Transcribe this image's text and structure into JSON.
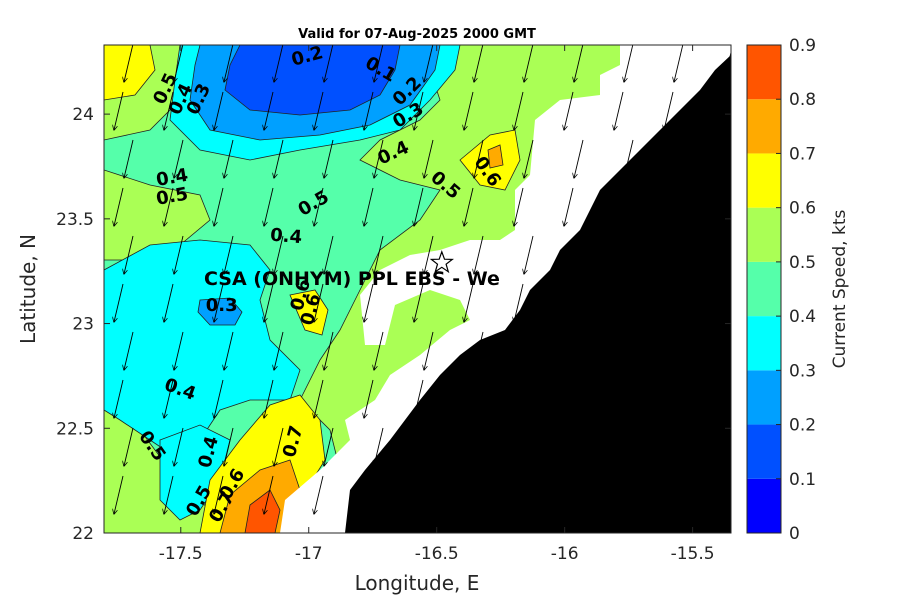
{
  "title": "Valid for 07-Aug-2025 2000 GMT",
  "x_axis": {
    "label": "Longitude, E",
    "ticks": [
      {
        "value": -17.5,
        "label": "-17.5"
      },
      {
        "value": -17.0,
        "label": "-17"
      },
      {
        "value": -16.5,
        "label": "-16.5"
      },
      {
        "value": -16.0,
        "label": "-16"
      },
      {
        "value": -15.5,
        "label": "-15.5"
      }
    ],
    "range": [
      -17.8,
      -15.35
    ]
  },
  "y_axis": {
    "label": "Latitude, N",
    "ticks": [
      {
        "value": 22.0,
        "label": "22"
      },
      {
        "value": 22.5,
        "label": "22.5"
      },
      {
        "value": 23.0,
        "label": "23"
      },
      {
        "value": 23.5,
        "label": "23.5"
      },
      {
        "value": 24.0,
        "label": "24"
      }
    ],
    "range": [
      22.0,
      24.33
    ]
  },
  "colorbar": {
    "label": "Current Speed, kts",
    "ticks": [
      "0",
      "0.1",
      "0.2",
      "0.3",
      "0.4",
      "0.5",
      "0.6",
      "0.7",
      "0.8",
      "0.9"
    ],
    "levels": [
      {
        "min": 0.0,
        "max": 0.1,
        "color": "#0000ff"
      },
      {
        "min": 0.1,
        "max": 0.2,
        "color": "#0050ff"
      },
      {
        "min": 0.2,
        "max": 0.3,
        "color": "#00a0ff"
      },
      {
        "min": 0.3,
        "max": 0.4,
        "color": "#00ffff"
      },
      {
        "min": 0.4,
        "max": 0.5,
        "color": "#55ffaa"
      },
      {
        "min": 0.5,
        "max": 0.6,
        "color": "#aaff55"
      },
      {
        "min": 0.6,
        "max": 0.7,
        "color": "#ffff00"
      },
      {
        "min": 0.7,
        "max": 0.8,
        "color": "#ffaa00"
      },
      {
        "min": 0.8,
        "max": 0.9,
        "color": "#ff5500"
      }
    ]
  },
  "station": {
    "label": "CSA (ONHYM) PPL EBS - We",
    "lon": -16.48,
    "lat": 23.29
  },
  "contour_labels": [
    {
      "text": "0.2",
      "lon": -17.0,
      "lat": 24.25,
      "rot": -15
    },
    {
      "text": "0.1",
      "lon": -16.73,
      "lat": 24.19,
      "rot": 30
    },
    {
      "text": "0.2",
      "lon": -16.6,
      "lat": 24.09,
      "rot": -45
    },
    {
      "text": "0.3",
      "lon": -16.6,
      "lat": 23.97,
      "rot": -30
    },
    {
      "text": "0.5",
      "lon": -17.54,
      "lat": 24.11,
      "rot": -65
    },
    {
      "text": "0.4",
      "lon": -17.48,
      "lat": 24.06,
      "rot": -65
    },
    {
      "text": "0.3",
      "lon": -17.41,
      "lat": 24.06,
      "rot": -65
    },
    {
      "text": "0.4",
      "lon": -16.66,
      "lat": 23.79,
      "rot": -25
    },
    {
      "text": "0.5",
      "lon": -16.48,
      "lat": 23.64,
      "rot": 40
    },
    {
      "text": "0.6",
      "lon": -16.32,
      "lat": 23.71,
      "rot": 55
    },
    {
      "text": "0.4",
      "lon": -17.53,
      "lat": 23.67,
      "rot": -10
    },
    {
      "text": "0.5",
      "lon": -17.53,
      "lat": 23.58,
      "rot": -10
    },
    {
      "text": "0.5",
      "lon": -16.97,
      "lat": 23.55,
      "rot": -30
    },
    {
      "text": "0.4",
      "lon": -17.09,
      "lat": 23.39,
      "rot": 5
    },
    {
      "text": "0.6",
      "lon": -17.01,
      "lat": 23.13,
      "rot": -75
    },
    {
      "text": "0.6",
      "lon": -16.97,
      "lat": 23.06,
      "rot": -75
    },
    {
      "text": "0.3",
      "lon": -17.34,
      "lat": 23.06,
      "rot": 0
    },
    {
      "text": "0.4",
      "lon": -17.51,
      "lat": 22.66,
      "rot": 20
    },
    {
      "text": "0.5",
      "lon": -17.63,
      "lat": 22.4,
      "rot": 55
    },
    {
      "text": "0.4",
      "lon": -17.37,
      "lat": 22.38,
      "rot": -75
    },
    {
      "text": "0.7",
      "lon": -17.04,
      "lat": 22.43,
      "rot": -75
    },
    {
      "text": "0.6",
      "lon": -17.28,
      "lat": 22.22,
      "rot": -60
    },
    {
      "text": "0.5",
      "lon": -17.41,
      "lat": 22.14,
      "rot": -60
    },
    {
      "text": "0.7",
      "lon": -17.32,
      "lat": 22.11,
      "rot": -60
    }
  ]
}
